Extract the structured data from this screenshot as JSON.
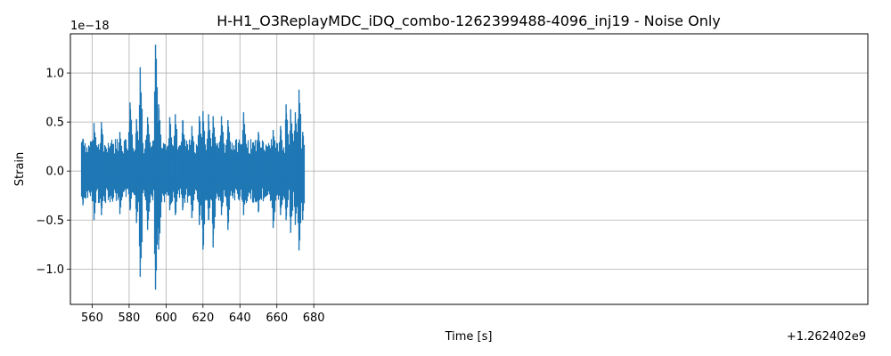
{
  "chart_data": {
    "type": "line",
    "title": "H-H1_O3ReplayMDC_iDQ_combo-1262399488-4096_inj19 - Noise Only",
    "xlabel": "Time [s]",
    "ylabel": "Strain",
    "x_offset_label": "+1.262402e9",
    "y_scale_label": "1e−18",
    "xlim": [
      548.2,
      980
    ],
    "ylim": [
      -1.36,
      1.4
    ],
    "x_ticks": [
      560,
      580,
      600,
      620,
      640,
      660,
      680
    ],
    "x_tick_labels": [
      "560",
      "580",
      "600",
      "620",
      "640",
      "660",
      "680"
    ],
    "y_ticks": [
      -1.0,
      -0.5,
      0.0,
      0.5,
      1.0
    ],
    "y_tick_labels": [
      "−1.0",
      "−0.5",
      "0.0",
      "0.5",
      "1.0"
    ],
    "grid": true,
    "series": [
      {
        "color": "#1f77b4",
        "x_range": [
          554.2,
          674.2
        ],
        "baseline_amplitude": 0.22,
        "peaks": [
          {
            "x": 555.0,
            "max": 0.33,
            "min": -0.35
          },
          {
            "x": 561.0,
            "max": 0.49,
            "min": -0.5
          },
          {
            "x": 565.0,
            "max": 0.5,
            "min": -0.45
          },
          {
            "x": 575.0,
            "max": 0.4,
            "min": -0.44
          },
          {
            "x": 580.5,
            "max": 0.7,
            "min": -0.4
          },
          {
            "x": 584.0,
            "max": 0.53,
            "min": -0.53
          },
          {
            "x": 586.0,
            "max": 1.06,
            "min": -1.08
          },
          {
            "x": 590.0,
            "max": 0.55,
            "min": -0.6
          },
          {
            "x": 594.3,
            "max": 1.29,
            "min": -1.21
          },
          {
            "x": 596.0,
            "max": 0.68,
            "min": -0.8
          },
          {
            "x": 602.0,
            "max": 0.55,
            "min": -0.4
          },
          {
            "x": 605.0,
            "max": 0.58,
            "min": -0.45
          },
          {
            "x": 609.0,
            "max": 0.52,
            "min": -0.4
          },
          {
            "x": 614.0,
            "max": 0.46,
            "min": -0.48
          },
          {
            "x": 618.0,
            "max": 0.56,
            "min": -0.55
          },
          {
            "x": 620.0,
            "max": 0.61,
            "min": -0.8
          },
          {
            "x": 623.0,
            "max": 0.58,
            "min": -0.5
          },
          {
            "x": 625.5,
            "max": 0.56,
            "min": -0.78
          },
          {
            "x": 630.0,
            "max": 0.56,
            "min": -0.45
          },
          {
            "x": 633.5,
            "max": 0.52,
            "min": -0.6
          },
          {
            "x": 642.0,
            "max": 0.6,
            "min": -0.45
          },
          {
            "x": 650.0,
            "max": 0.4,
            "min": -0.42
          },
          {
            "x": 658.0,
            "max": 0.42,
            "min": -0.58
          },
          {
            "x": 662.0,
            "max": 0.46,
            "min": -0.45
          },
          {
            "x": 665.0,
            "max": 0.68,
            "min": -0.5
          },
          {
            "x": 667.5,
            "max": 0.63,
            "min": -0.63
          },
          {
            "x": 670.0,
            "max": 0.6,
            "min": -0.55
          },
          {
            "x": 672.0,
            "max": 0.83,
            "min": -0.81
          },
          {
            "x": 674.0,
            "max": 0.4,
            "min": -0.5
          }
        ]
      }
    ]
  }
}
